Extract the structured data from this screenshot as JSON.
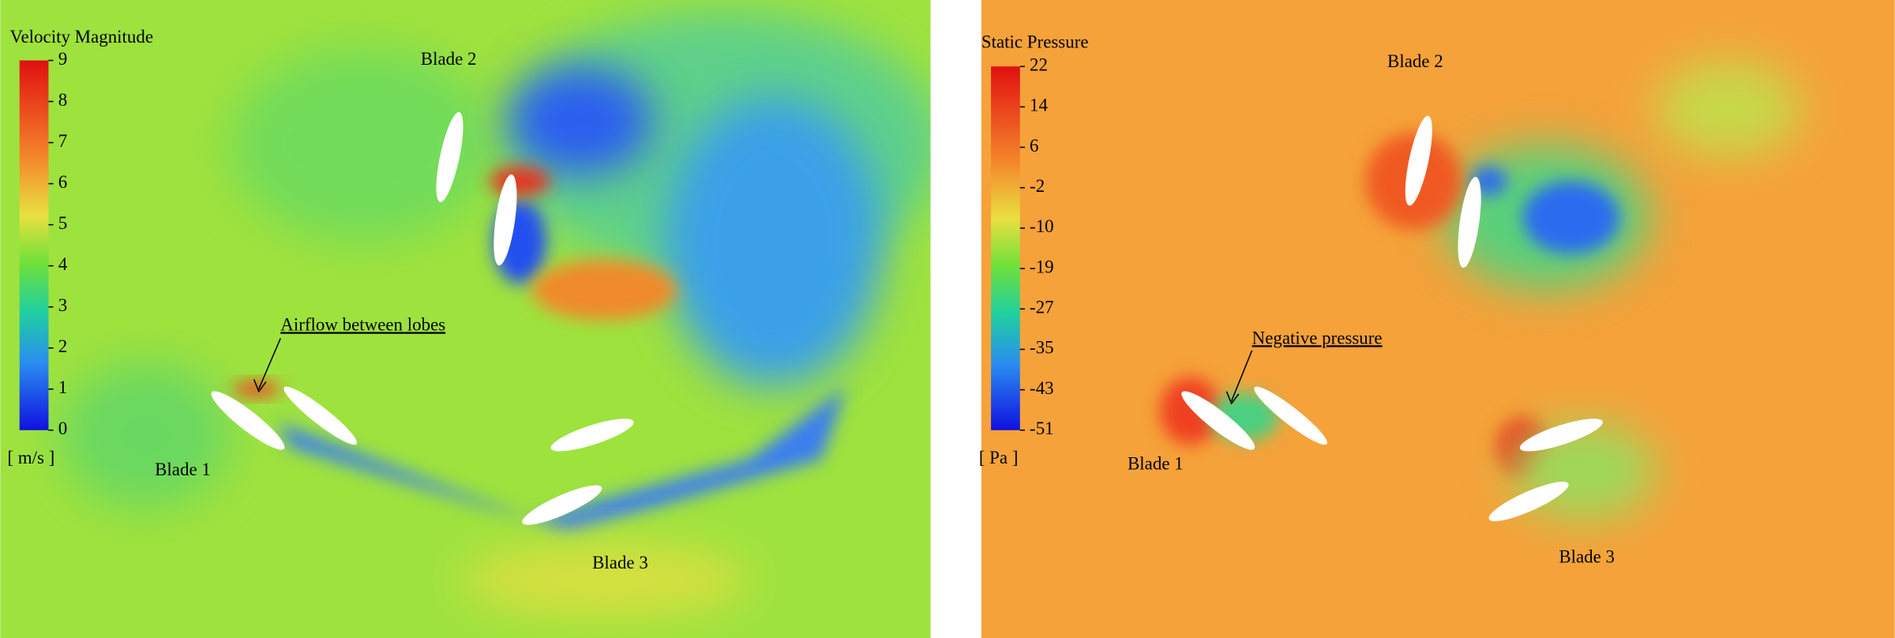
{
  "panels": [
    {
      "colorbar": {
        "title": "Velocity Magnitude",
        "ticks": [
          9,
          8,
          7,
          6,
          5,
          4,
          3,
          2,
          1,
          0
        ],
        "unit": "[ m/s ]"
      },
      "labels": [
        "Blade 2",
        "Blade 1",
        "Blade 3"
      ],
      "annotation": "Airflow between lobes"
    },
    {
      "colorbar": {
        "title": "Static Pressure",
        "ticks": [
          22,
          14,
          6,
          -2,
          -10,
          -19,
          -27,
          -35,
          -43,
          -51
        ],
        "unit": "[ Pa ]"
      },
      "labels": [
        "Blade 2",
        "Blade 1",
        "Blade 3"
      ],
      "annotation": "Negative pressure"
    }
  ]
}
